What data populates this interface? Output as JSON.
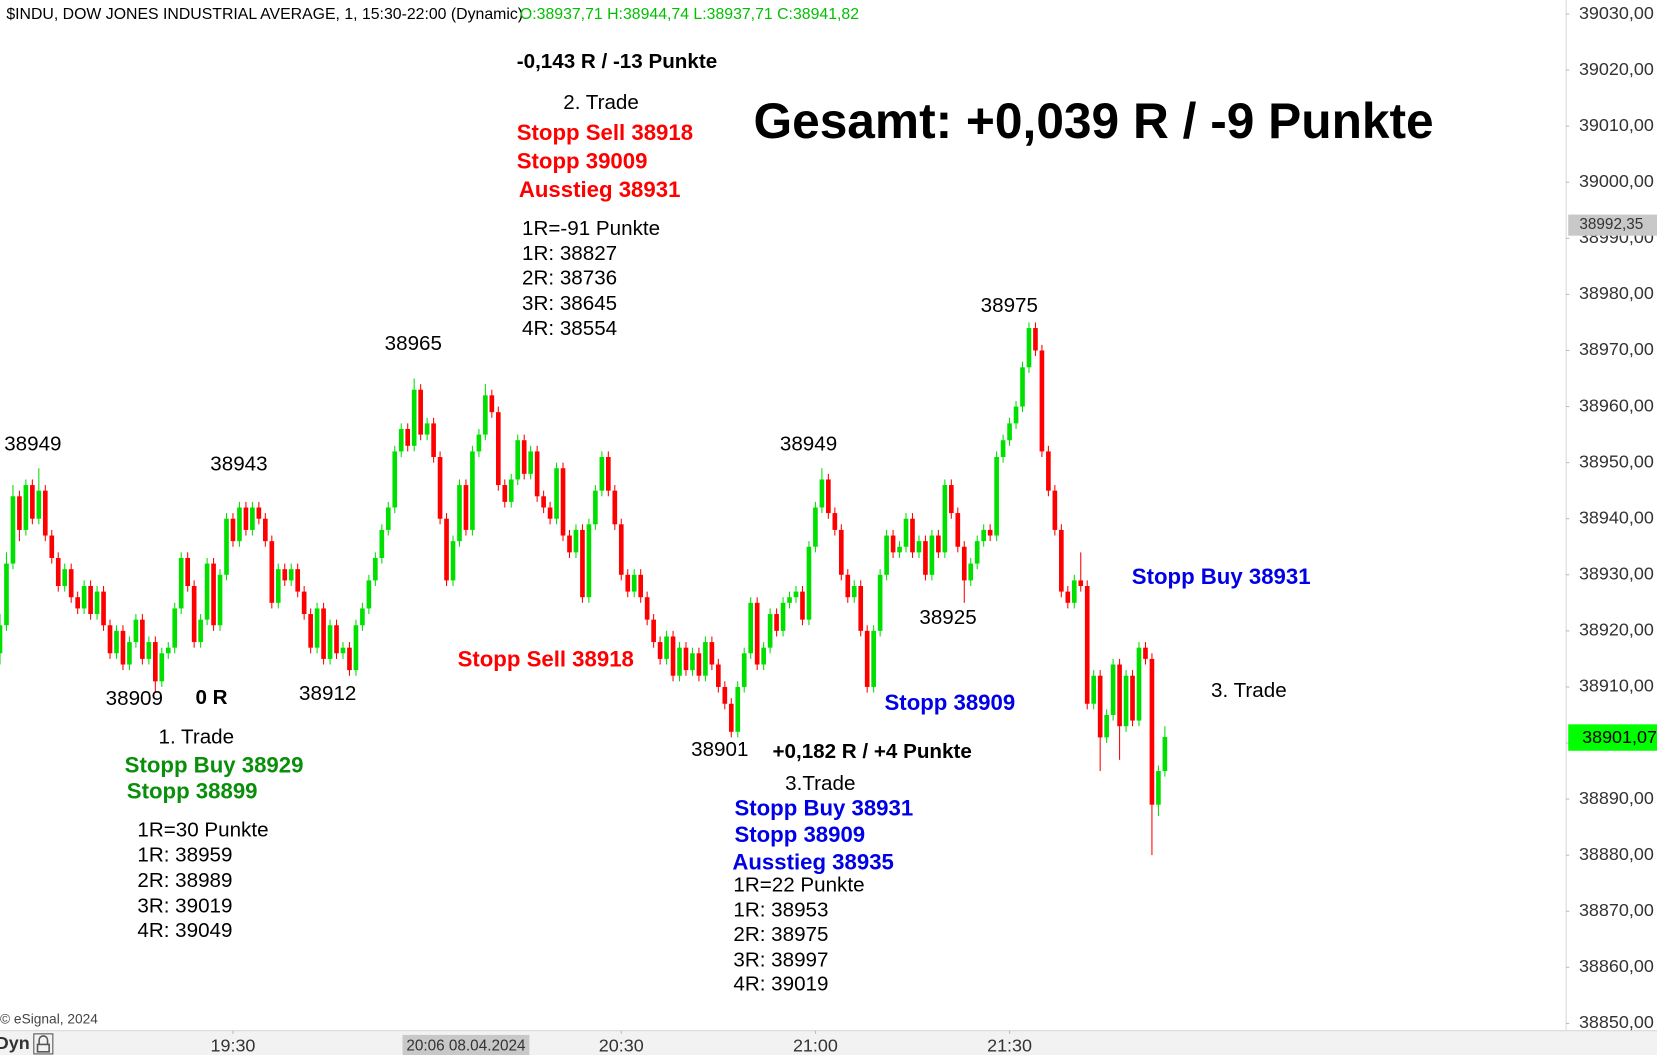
{
  "chart_data": {
    "type": "candlestick",
    "title": "$INDU, DOW JONES INDUSTRIAL AVERAGE, 1, 15:30-22:00 (Dynamic)",
    "ohlc_label": "O:38937,71 H:38944,74 L:38937,71 C:38941,82",
    "up_color": "#00e000",
    "down_color": "#ff0000",
    "x": [
      "18:54",
      "18:55",
      "18:56",
      "18:57",
      "18:58",
      "18:59",
      "19:00",
      "19:01",
      "19:02",
      "19:03",
      "19:04",
      "19:05",
      "19:06",
      "19:07",
      "19:08",
      "19:09",
      "19:10",
      "19:11",
      "19:12",
      "19:13",
      "19:14",
      "19:15",
      "19:16",
      "19:17",
      "19:18",
      "19:19",
      "19:20",
      "19:21",
      "19:22",
      "19:23",
      "19:24",
      "19:25",
      "19:26",
      "19:27",
      "19:28",
      "19:29",
      "19:30",
      "19:31",
      "19:32",
      "19:33",
      "19:34",
      "19:35",
      "19:36",
      "19:37",
      "19:38",
      "19:39",
      "19:40",
      "19:41",
      "19:42",
      "19:43",
      "19:44",
      "19:45",
      "19:46",
      "19:47",
      "19:48",
      "19:49",
      "19:50",
      "19:51",
      "19:52",
      "19:53",
      "19:54",
      "19:55",
      "19:56",
      "19:57",
      "19:58",
      "19:59",
      "20:00",
      "20:01",
      "20:02",
      "20:03",
      "20:04",
      "20:05",
      "20:06",
      "20:07",
      "20:08",
      "20:09",
      "20:10",
      "20:11",
      "20:12",
      "20:13",
      "20:14",
      "20:15",
      "20:16",
      "20:17",
      "20:18",
      "20:19",
      "20:20",
      "20:21",
      "20:22",
      "20:23",
      "20:24",
      "20:25",
      "20:26",
      "20:27",
      "20:28",
      "20:29",
      "20:30",
      "20:31",
      "20:32",
      "20:33",
      "20:34",
      "20:35",
      "20:36",
      "20:37",
      "20:38",
      "20:39",
      "20:40",
      "20:41",
      "20:42",
      "20:43",
      "20:44",
      "20:45",
      "20:46",
      "20:47",
      "20:48",
      "20:49",
      "20:50",
      "20:51",
      "20:52",
      "20:53",
      "20:54",
      "20:55",
      "20:56",
      "20:57",
      "20:58",
      "20:59",
      "21:00",
      "21:01",
      "21:02",
      "21:03",
      "21:04",
      "21:05",
      "21:06",
      "21:07",
      "21:08",
      "21:09",
      "21:10",
      "21:11",
      "21:12",
      "21:13",
      "21:14",
      "21:15",
      "21:16",
      "21:17",
      "21:18",
      "21:19",
      "21:20",
      "21:21",
      "21:22",
      "21:23",
      "21:24",
      "21:25",
      "21:26",
      "21:27",
      "21:28",
      "21:29",
      "21:30",
      "21:31",
      "21:32",
      "21:33",
      "21:34",
      "21:35",
      "21:36",
      "21:37",
      "21:38",
      "21:39",
      "21:40",
      "21:41",
      "21:42",
      "21:43",
      "21:44",
      "21:45",
      "21:46",
      "21:47",
      "21:48",
      "21:49",
      "21:50",
      "21:51",
      "21:52",
      "21:53",
      "21:54"
    ],
    "open": [
      38916,
      38921,
      38932,
      38944,
      38938,
      38946,
      38940,
      38945,
      38937,
      38933,
      38928,
      38931,
      38926,
      38924,
      38928,
      38923,
      38927,
      38921,
      38916,
      38920,
      38914,
      38918,
      38922,
      38915,
      38918,
      38911,
      38916,
      38917,
      38924,
      38933,
      38928,
      38918,
      38922,
      38932,
      38921,
      38930,
      38940,
      38936,
      38942,
      38938,
      38942,
      38940,
      38936,
      38925,
      38931,
      38929,
      38931,
      38927,
      38923,
      38917,
      38924,
      38915,
      38921,
      38916,
      38917,
      38913,
      38921,
      38924,
      38929,
      38933,
      38938,
      38942,
      38952,
      38956,
      38953,
      38963,
      38955,
      38957,
      38951,
      38940,
      38929,
      38936,
      38946,
      38938,
      38952,
      38955,
      38962,
      38959,
      38946,
      38943,
      38947,
      38954,
      38948,
      38952,
      38944,
      38942,
      38940,
      38949,
      38937,
      38934,
      38938,
      38926,
      38939,
      38945,
      38951,
      38945,
      38939,
      38930,
      38927,
      38930,
      38926,
      38922,
      38918,
      38915,
      38919,
      38912,
      38917,
      38913,
      38916,
      38912,
      38918,
      38914,
      38910,
      38907,
      38902,
      38910,
      38916,
      38925,
      38914,
      38917,
      38923,
      38920,
      38925,
      38926,
      38927,
      38922,
      38935,
      38942,
      38947,
      38941,
      38938,
      38930,
      38926,
      38928,
      38920,
      38910,
      38920,
      38930,
      38937,
      38934,
      38935,
      38940,
      38934,
      38936,
      38930,
      38937,
      38934,
      38946,
      38941,
      38935,
      38929,
      38932,
      38936,
      38938,
      38937,
      38951,
      38954,
      38957,
      38960,
      38967,
      38974,
      38970,
      38952,
      38945,
      38938,
      38927,
      38925,
      38929,
      38928,
      38907,
      38912,
      38901,
      38905,
      38914,
      38903,
      38912,
      38904,
      38917,
      38915,
      38889,
      38895
    ],
    "high": [
      38923,
      38934,
      38946,
      38945,
      38947,
      38947,
      38949,
      38946,
      38938,
      38934,
      38932,
      38932,
      38927,
      38929,
      38929,
      38928,
      38928,
      38922,
      38921,
      38921,
      38919,
      38923,
      38923,
      38919,
      38919,
      38917,
      38918,
      38925,
      38934,
      38934,
      38929,
      38923,
      38933,
      38933,
      38931,
      38941,
      38941,
      38943,
      38943,
      38943,
      38943,
      38941,
      38937,
      38932,
      38932,
      38932,
      38932,
      38928,
      38924,
      38925,
      38925,
      38922,
      38922,
      38918,
      38918,
      38922,
      38925,
      38930,
      38934,
      38939,
      38943,
      38953,
      38957,
      38957,
      38965,
      38964,
      38958,
      38958,
      38952,
      38941,
      38937,
      38947,
      38947,
      38953,
      38956,
      38964,
      38963,
      38960,
      38947,
      38948,
      38955,
      38955,
      38953,
      38953,
      38945,
      38943,
      38950,
      38950,
      38938,
      38939,
      38939,
      38940,
      38946,
      38952,
      38952,
      38946,
      38940,
      38931,
      38931,
      38931,
      38927,
      38923,
      38919,
      38920,
      38920,
      38918,
      38918,
      38917,
      38917,
      38919,
      38919,
      38915,
      38911,
      38908,
      38911,
      38917,
      38926,
      38926,
      38918,
      38924,
      38924,
      38926,
      38927,
      38928,
      38928,
      38936,
      38943,
      38949,
      38948,
      38942,
      38939,
      38931,
      38929,
      38929,
      38921,
      38921,
      38931,
      38938,
      38938,
      38936,
      38941,
      38941,
      38937,
      38937,
      38938,
      38938,
      38947,
      38947,
      38942,
      38936,
      38933,
      38937,
      38939,
      38939,
      38952,
      38955,
      38958,
      38961,
      38968,
      38975,
      38975,
      38971,
      38953,
      38946,
      38939,
      38928,
      38930,
      38934,
      38929,
      38913,
      38913,
      38906,
      38915,
      38915,
      38913,
      38913,
      38918,
      38918,
      38916,
      38896,
      38903
    ],
    "low": [
      38914,
      38920,
      38931,
      38936,
      38937,
      38939,
      38939,
      38936,
      38932,
      38927,
      38927,
      38925,
      38923,
      38923,
      38922,
      38922,
      38920,
      38915,
      38915,
      38913,
      38913,
      38917,
      38914,
      38914,
      38909,
      38910,
      38915,
      38916,
      38923,
      38927,
      38917,
      38917,
      38921,
      38920,
      38920,
      38929,
      38935,
      38935,
      38937,
      38937,
      38939,
      38935,
      38924,
      38924,
      38928,
      38928,
      38926,
      38922,
      38916,
      38916,
      38914,
      38914,
      38915,
      38915,
      38912,
      38912,
      38920,
      38923,
      38928,
      38932,
      38937,
      38941,
      38951,
      38952,
      38952,
      38954,
      38954,
      38950,
      38939,
      38928,
      38928,
      38935,
      38937,
      38937,
      38951,
      38954,
      38958,
      38945,
      38942,
      38942,
      38946,
      38947,
      38947,
      38943,
      38941,
      38939,
      38939,
      38936,
      38933,
      38933,
      38925,
      38925,
      38938,
      38944,
      38944,
      38938,
      38929,
      38926,
      38926,
      38925,
      38921,
      38917,
      38914,
      38914,
      38911,
      38911,
      38912,
      38912,
      38911,
      38911,
      38913,
      38909,
      38906,
      38901,
      38901,
      38909,
      38915,
      38913,
      38913,
      38916,
      38919,
      38919,
      38924,
      38925,
      38921,
      38921,
      38934,
      38941,
      38940,
      38937,
      38929,
      38925,
      38925,
      38919,
      38909,
      38909,
      38919,
      38929,
      38933,
      38933,
      38934,
      38933,
      38933,
      38929,
      38929,
      38933,
      38933,
      38940,
      38934,
      38925,
      38928,
      38931,
      38935,
      38936,
      38936,
      38950,
      38953,
      38956,
      38959,
      38966,
      38969,
      38951,
      38944,
      38937,
      38926,
      38924,
      38924,
      38927,
      38906,
      38906,
      38895,
      38900,
      38904,
      38897,
      38902,
      38903,
      38903,
      38914,
      38880,
      38887,
      38894
    ],
    "close": [
      38921,
      38932,
      38944,
      38938,
      38946,
      38940,
      38945,
      38937,
      38933,
      38928,
      38931,
      38926,
      38924,
      38928,
      38923,
      38927,
      38921,
      38916,
      38920,
      38914,
      38918,
      38922,
      38915,
      38918,
      38911,
      38916,
      38917,
      38924,
      38933,
      38928,
      38918,
      38922,
      38932,
      38921,
      38930,
      38940,
      38936,
      38942,
      38938,
      38942,
      38940,
      38936,
      38925,
      38931,
      38929,
      38931,
      38927,
      38923,
      38917,
      38924,
      38915,
      38921,
      38916,
      38917,
      38913,
      38921,
      38924,
      38929,
      38933,
      38938,
      38942,
      38952,
      38956,
      38953,
      38963,
      38955,
      38957,
      38951,
      38940,
      38929,
      38936,
      38946,
      38938,
      38952,
      38955,
      38962,
      38959,
      38946,
      38943,
      38947,
      38954,
      38948,
      38952,
      38944,
      38942,
      38940,
      38949,
      38937,
      38934,
      38938,
      38926,
      38939,
      38945,
      38951,
      38945,
      38939,
      38930,
      38927,
      38930,
      38926,
      38922,
      38918,
      38915,
      38919,
      38912,
      38917,
      38913,
      38916,
      38912,
      38918,
      38914,
      38910,
      38907,
      38902,
      38910,
      38916,
      38925,
      38914,
      38917,
      38923,
      38920,
      38925,
      38926,
      38927,
      38922,
      38935,
      38942,
      38947,
      38941,
      38938,
      38930,
      38926,
      38928,
      38920,
      38910,
      38920,
      38930,
      38937,
      38934,
      38935,
      38940,
      38934,
      38936,
      38930,
      38937,
      38934,
      38946,
      38941,
      38935,
      38929,
      38932,
      38936,
      38938,
      38937,
      38951,
      38954,
      38957,
      38960,
      38967,
      38974,
      38970,
      38952,
      38945,
      38938,
      38927,
      38925,
      38929,
      38928,
      38907,
      38912,
      38901,
      38905,
      38914,
      38903,
      38912,
      38904,
      38917,
      38915,
      38889,
      38895,
      38901.07
    ],
    "xlim": [
      "18:54",
      "22:56"
    ],
    "xticks": [
      "19:30",
      "20:30",
      "21:00",
      "21:30"
    ],
    "ylim": [
      38848.7,
      39032.5
    ],
    "yticks": [
      {
        "value": 38850,
        "label": "38850,00"
      },
      {
        "value": 38860,
        "label": "38860,00"
      },
      {
        "value": 38870,
        "label": "38870,00"
      },
      {
        "value": 38880,
        "label": "38880,00"
      },
      {
        "value": 38890,
        "label": "38890,00"
      },
      {
        "value": 38900,
        "label": "38900,00"
      },
      {
        "value": 38910,
        "label": "38910,00"
      },
      {
        "value": 38920,
        "label": "38920,00"
      },
      {
        "value": 38930,
        "label": "38930,00"
      },
      {
        "value": 38940,
        "label": "38940,00"
      },
      {
        "value": 38950,
        "label": "38950,00"
      },
      {
        "value": 38960,
        "label": "38960,00"
      },
      {
        "value": 38970,
        "label": "38970,00"
      },
      {
        "value": 38980,
        "label": "38980,00"
      },
      {
        "value": 38990,
        "label": "38990,00"
      },
      {
        "value": 39000,
        "label": "39000,00"
      },
      {
        "value": 39010,
        "label": "39010,00"
      },
      {
        "value": 39020,
        "label": "39020,00"
      },
      {
        "value": 39030,
        "label": "39030,00"
      }
    ],
    "last_price": {
      "value": 38901.07,
      "label": "38901,07"
    },
    "crosshair": {
      "time": "20:06",
      "label": "20:06 08.04.2024",
      "price": {
        "value": 38992.35,
        "label": "38992,35"
      }
    },
    "annotations": [
      "38949",
      "38943",
      "38965",
      "38975",
      "38949",
      "38909",
      "0 R",
      "38912",
      "38901",
      "38925",
      "1. Trade",
      "Stopp Buy 38929",
      "Stopp 38899",
      "1R=30 Punkte",
      "1R: 38959",
      "2R: 38989",
      "3R: 39019",
      "4R: 39049",
      "-0,143 R / -13 Punkte",
      "2. Trade",
      "Stopp Sell 38918",
      "Stopp 39009",
      "Ausstieg 38931",
      "1R=-91 Punkte",
      "1R: 38827",
      "2R: 38736",
      "3R: 38645",
      "4R: 38554",
      "Gesamt: +0,039 R / -9 Punkte",
      "Stopp Sell 38918",
      "Stopp 38909",
      "+0,182 R / +4 Punkte",
      "3.Trade",
      "Stopp Buy 38931",
      "Stopp 38909",
      "Ausstieg 38935",
      "1R=22 Punkte",
      "1R: 38953",
      "2R: 38975",
      "3R: 38997",
      "4R: 39019",
      "Stopp Buy 38931",
      "3. Trade"
    ]
  },
  "footer": {
    "copyright": "© eSignal, 2024",
    "mode": "Dyn"
  }
}
